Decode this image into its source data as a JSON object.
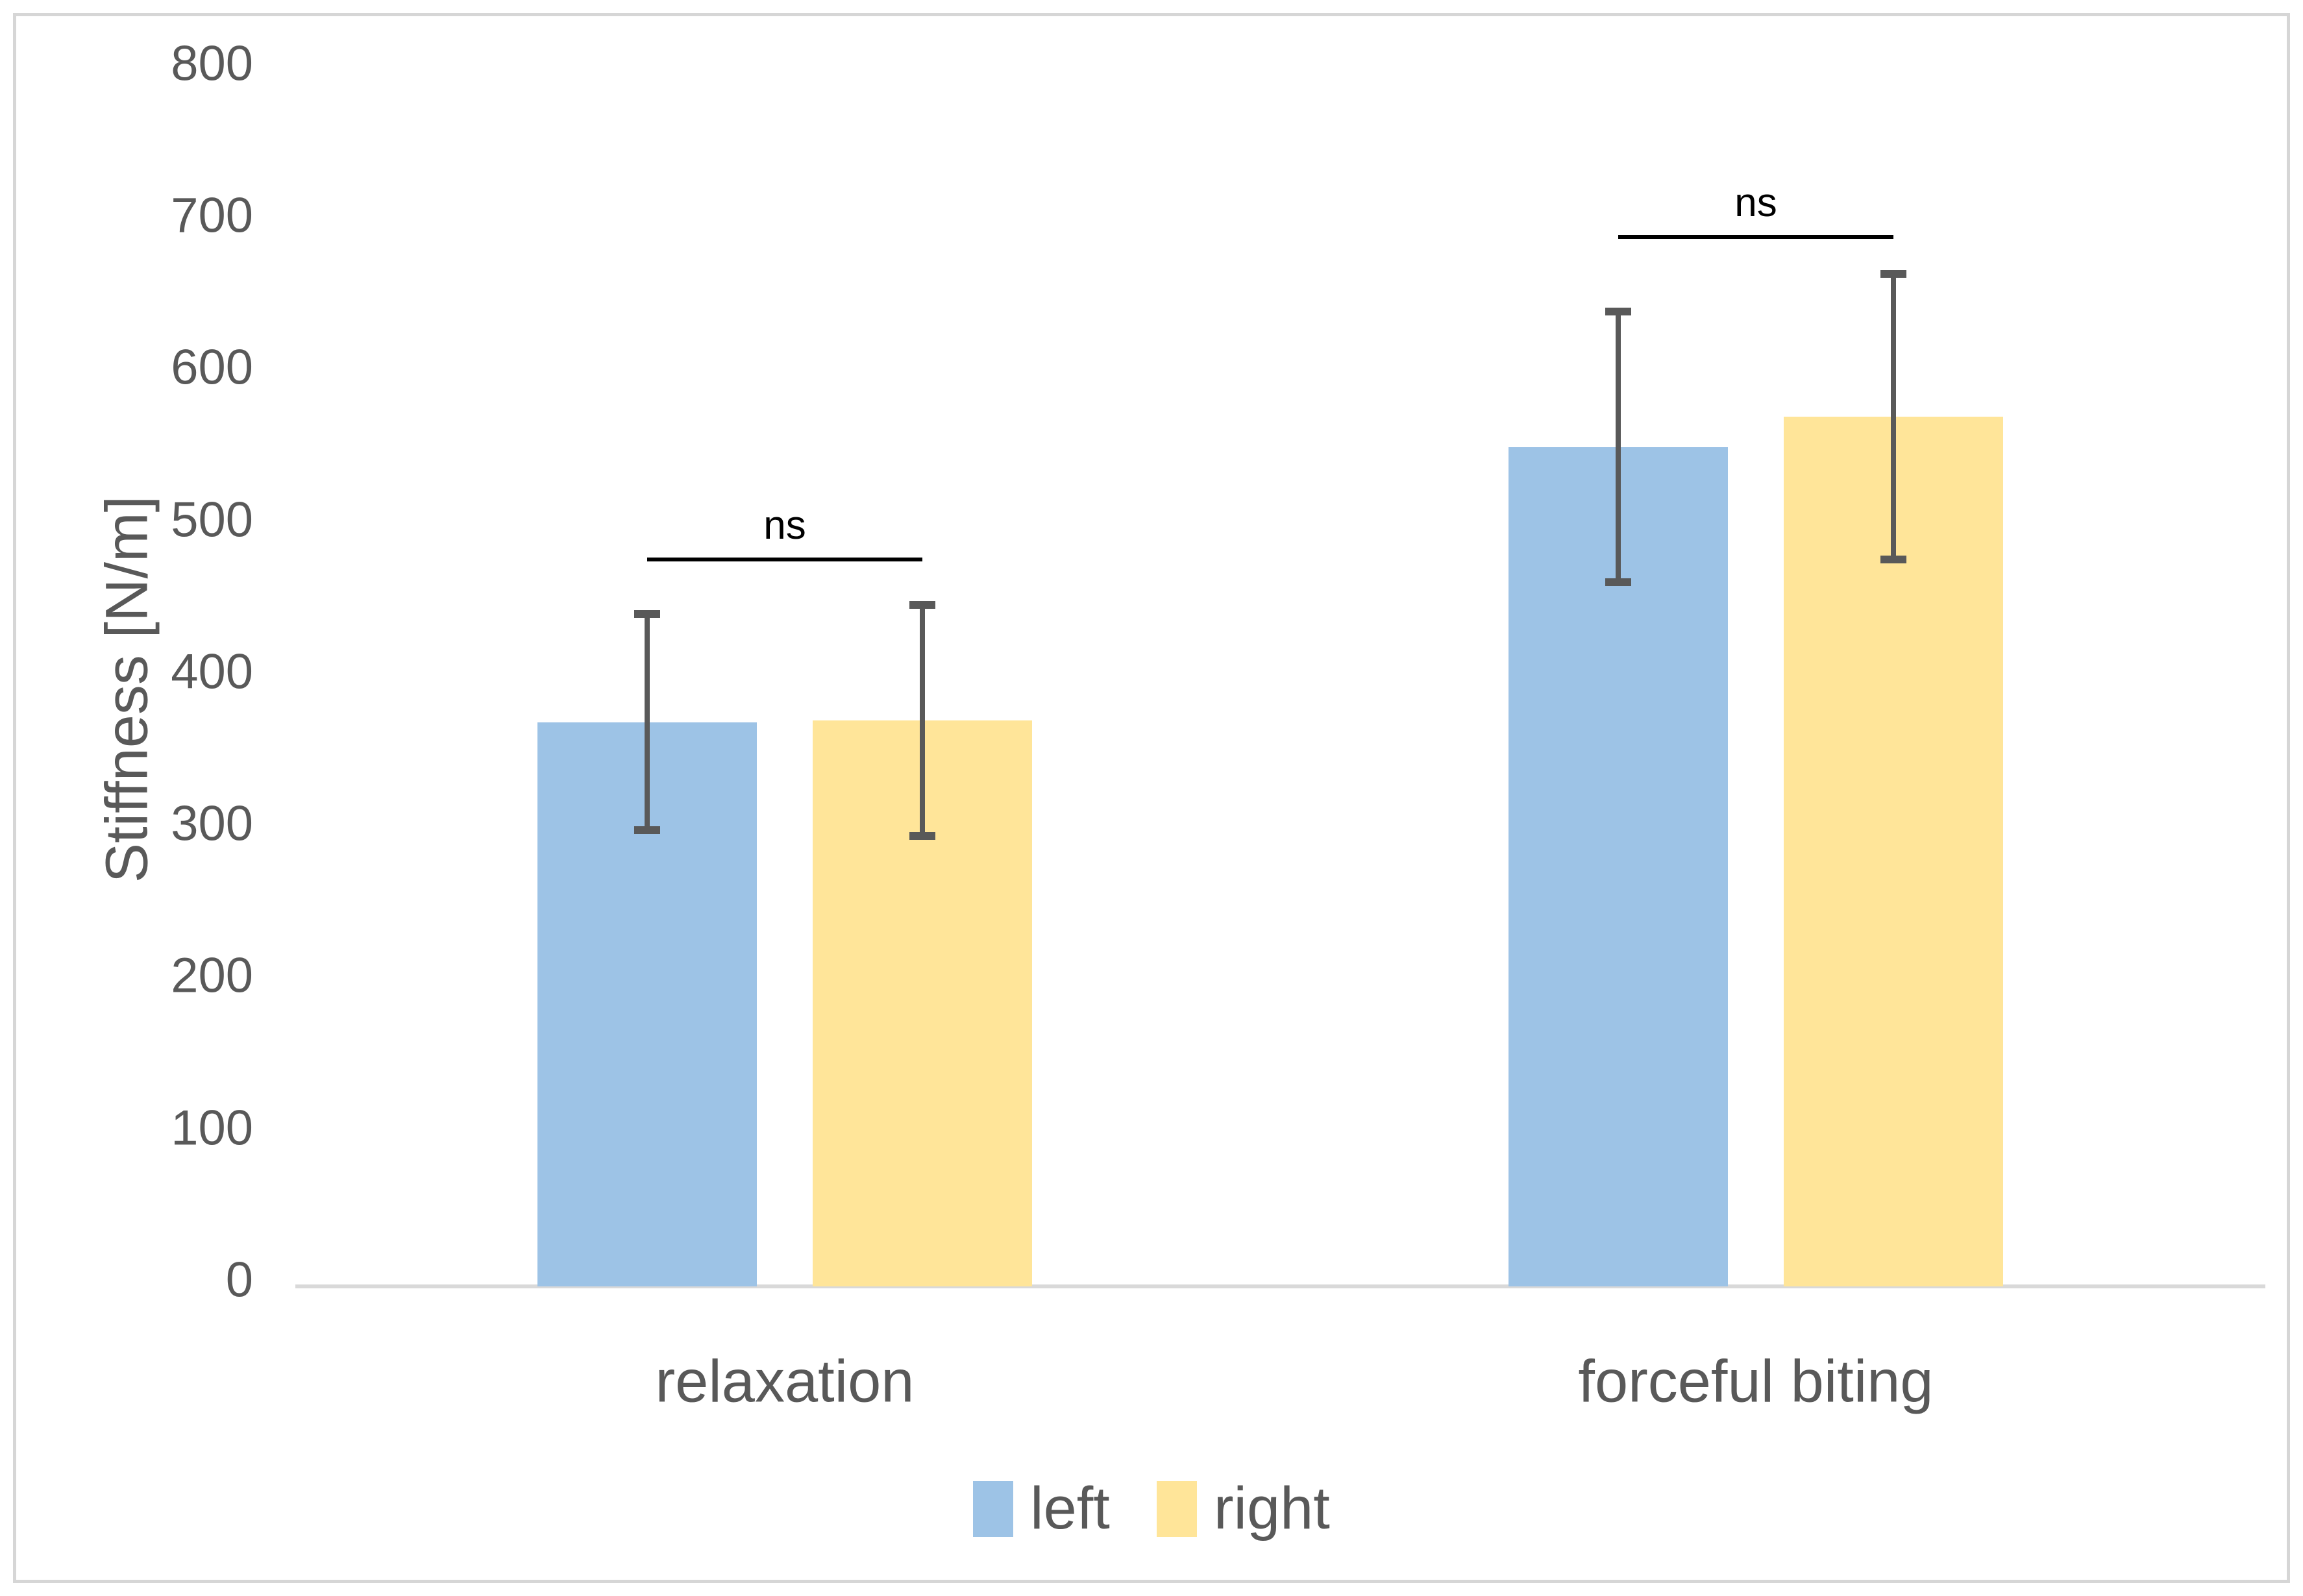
{
  "chart_data": {
    "type": "bar",
    "title": "",
    "xlabel": "",
    "ylabel": "Stiffness [N/m]",
    "ylim": [
      0,
      800
    ],
    "yticks": [
      0,
      100,
      200,
      300,
      400,
      500,
      600,
      700,
      800
    ],
    "categories": [
      "relaxation",
      "forceful biting"
    ],
    "series": [
      {
        "name": "left",
        "color": "#9DC3E6",
        "values": [
          371,
          552
        ],
        "errors": [
          71,
          89
        ]
      },
      {
        "name": "right",
        "color": "#FFE599",
        "values": [
          372,
          572
        ],
        "errors": [
          76,
          94
        ]
      }
    ],
    "annotations": [
      {
        "label": "ns",
        "category_index": 0,
        "line_y": 478
      },
      {
        "label": "ns",
        "category_index": 1,
        "line_y": 690
      }
    ],
    "legend_position": "bottom",
    "grid": false,
    "colors": {
      "error_bar": "#595959",
      "axis_line": "#D9D9D9",
      "text": "#595959",
      "annotation": "#000000",
      "border": "#D6D6D6"
    }
  }
}
